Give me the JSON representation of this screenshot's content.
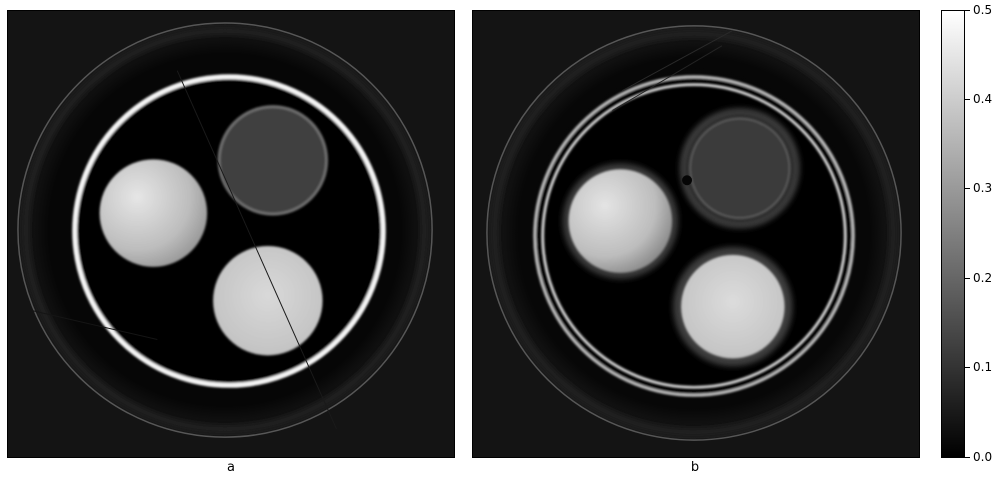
{
  "panels": [
    {
      "caption": "a"
    },
    {
      "caption": "b"
    }
  ],
  "colorbar": {
    "ticks": [
      "0.0",
      "0.1",
      "0.2",
      "0.3",
      "0.4",
      "0.5"
    ],
    "min": 0.0,
    "max": 0.5,
    "colormap": "gray"
  }
}
